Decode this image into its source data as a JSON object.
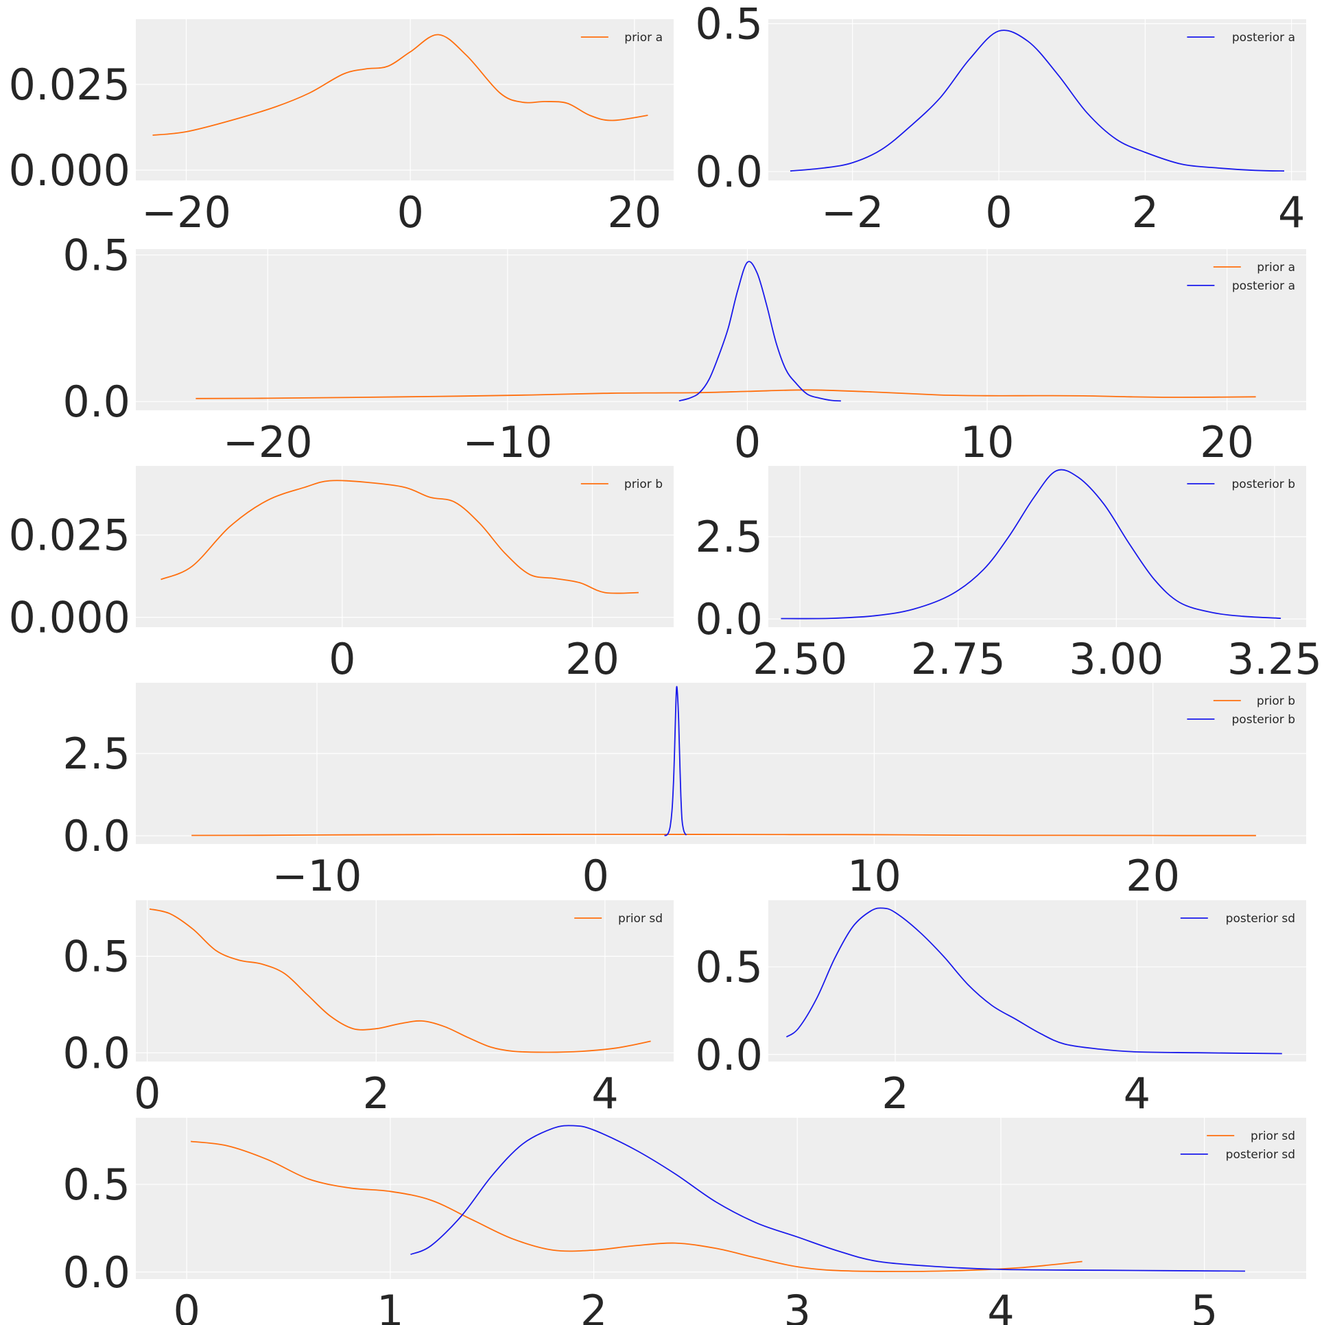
{
  "figure": {
    "colors": {
      "prior": "#ff6f0e",
      "posterior": "#1a1aeb",
      "background": "#eeeeee",
      "grid": "#ffffff"
    }
  },
  "chart_data": [
    {
      "id": "prior-a",
      "type": "line",
      "grid": true,
      "legend": "top-right",
      "xlim": [
        -24.5,
        23.5
      ],
      "ylim": [
        -0.003,
        0.044
      ],
      "xticks": [
        -20,
        0,
        20
      ],
      "xtick_labels": [
        "−20",
        "0",
        "20"
      ],
      "yticks": [
        0.0,
        0.025
      ],
      "ytick_labels": [
        "0.000",
        "0.025"
      ],
      "series": [
        {
          "name": "prior a",
          "color": "#ff6f0e",
          "x": [
            -23,
            -20,
            -16,
            -12,
            -9,
            -6,
            -4,
            -2,
            0,
            2.5,
            5,
            8,
            10,
            12,
            14,
            16,
            18,
            21.2
          ],
          "y": [
            0.0102,
            0.0112,
            0.0145,
            0.0185,
            0.0225,
            0.028,
            0.0295,
            0.0303,
            0.0345,
            0.0395,
            0.0335,
            0.0225,
            0.0198,
            0.02,
            0.0195,
            0.016,
            0.0145,
            0.016
          ]
        }
      ]
    },
    {
      "id": "posterior-a",
      "type": "line",
      "grid": true,
      "legend": "top-right",
      "xlim": [
        -3.15,
        4.2
      ],
      "ylim": [
        -0.03,
        0.515
      ],
      "xticks": [
        -2,
        0,
        2,
        4
      ],
      "xtick_labels": [
        "−2",
        "0",
        "2",
        "4"
      ],
      "yticks": [
        0.0,
        0.5
      ],
      "ytick_labels": [
        "0.0",
        "0.5"
      ],
      "series": [
        {
          "name": "posterior a",
          "color": "#1a1aeb",
          "x": [
            -2.85,
            -2.4,
            -2,
            -1.6,
            -1.2,
            -0.8,
            -0.4,
            0,
            0.4,
            0.8,
            1.2,
            1.6,
            2,
            2.5,
            3,
            3.5,
            3.9
          ],
          "y": [
            0.002,
            0.012,
            0.03,
            0.075,
            0.155,
            0.25,
            0.38,
            0.475,
            0.44,
            0.33,
            0.2,
            0.11,
            0.065,
            0.025,
            0.012,
            0.004,
            0.002
          ]
        }
      ]
    },
    {
      "id": "prior-posterior-a",
      "type": "line",
      "grid": true,
      "legend": "top-right",
      "xlim": [
        -25.5,
        23.3
      ],
      "ylim": [
        -0.03,
        0.52
      ],
      "xticks": [
        -20,
        -10,
        0,
        10,
        20
      ],
      "xtick_labels": [
        "−20",
        "−10",
        "0",
        "10",
        "20"
      ],
      "yticks": [
        0.0,
        0.5
      ],
      "ytick_labels": [
        "0.0",
        "0.5"
      ],
      "series": [
        {
          "name": "prior a",
          "color": "#ff6f0e",
          "x": [
            -23,
            -20,
            -16,
            -12,
            -9,
            -6,
            -4,
            -2,
            0,
            2.5,
            5,
            8,
            10,
            12,
            14,
            16,
            18,
            21.2
          ],
          "y": [
            0.0102,
            0.0112,
            0.0145,
            0.0185,
            0.0225,
            0.028,
            0.0295,
            0.0303,
            0.0345,
            0.0395,
            0.0335,
            0.0225,
            0.0198,
            0.02,
            0.0195,
            0.016,
            0.0145,
            0.016
          ]
        },
        {
          "name": "posterior a",
          "color": "#1a1aeb",
          "x": [
            -2.85,
            -2.4,
            -2,
            -1.6,
            -1.2,
            -0.8,
            -0.4,
            0,
            0.4,
            0.8,
            1.2,
            1.6,
            2,
            2.5,
            3,
            3.5,
            3.9
          ],
          "y": [
            0.002,
            0.012,
            0.03,
            0.075,
            0.155,
            0.25,
            0.38,
            0.475,
            0.44,
            0.33,
            0.2,
            0.11,
            0.065,
            0.025,
            0.012,
            0.004,
            0.002
          ]
        }
      ]
    },
    {
      "id": "prior-b",
      "type": "line",
      "grid": true,
      "legend": "top-right",
      "xlim": [
        -16.5,
        26.5
      ],
      "ylim": [
        -0.003,
        0.046
      ],
      "xticks": [
        0,
        20
      ],
      "xtick_labels": [
        "0",
        "20"
      ],
      "yticks": [
        0.0,
        0.025
      ],
      "ytick_labels": [
        "0.000",
        "0.025"
      ],
      "series": [
        {
          "name": "prior b",
          "color": "#ff6f0e",
          "x": [
            -14.5,
            -12,
            -9,
            -6,
            -3,
            -1,
            2,
            5,
            7,
            9,
            11,
            13,
            15,
            17,
            19,
            21,
            23.7
          ],
          "y": [
            0.0115,
            0.0155,
            0.0275,
            0.0355,
            0.0395,
            0.0415,
            0.041,
            0.0395,
            0.0365,
            0.035,
            0.0285,
            0.0195,
            0.013,
            0.0118,
            0.0105,
            0.0075,
            0.0075
          ]
        }
      ]
    },
    {
      "id": "posterior-b",
      "type": "line",
      "grid": true,
      "legend": "top-right",
      "xlim": [
        2.45,
        3.3
      ],
      "ylim": [
        -0.25,
        4.65
      ],
      "xticks": [
        2.5,
        2.75,
        3.0,
        3.25
      ],
      "xtick_labels": [
        "2.50",
        "2.75",
        "3.00",
        "3.25"
      ],
      "yticks": [
        0.0,
        2.5
      ],
      "ytick_labels": [
        "0.0",
        "2.5"
      ],
      "series": [
        {
          "name": "posterior b",
          "color": "#1a1aeb",
          "x": [
            2.47,
            2.55,
            2.62,
            2.68,
            2.74,
            2.79,
            2.83,
            2.87,
            2.905,
            2.94,
            2.98,
            3.02,
            3.06,
            3.1,
            3.15,
            3.2,
            3.26
          ],
          "y": [
            0.01,
            0.02,
            0.1,
            0.3,
            0.75,
            1.5,
            2.5,
            3.7,
            4.5,
            4.3,
            3.5,
            2.3,
            1.2,
            0.5,
            0.2,
            0.08,
            0.02
          ]
        }
      ]
    },
    {
      "id": "prior-posterior-b",
      "type": "line",
      "grid": true,
      "legend": "top-right",
      "xlim": [
        -16.5,
        25.5
      ],
      "ylim": [
        -0.25,
        4.65
      ],
      "xticks": [
        -10,
        0,
        10,
        20
      ],
      "xtick_labels": [
        "−10",
        "0",
        "10",
        "20"
      ],
      "yticks": [
        0.0,
        2.5
      ],
      "ytick_labels": [
        "0.0",
        "2.5"
      ],
      "series": [
        {
          "name": "prior b",
          "color": "#ff6f0e",
          "x": [
            -14.5,
            -12,
            -9,
            -6,
            -3,
            -1,
            2,
            5,
            7,
            9,
            11,
            13,
            15,
            17,
            19,
            21,
            23.7
          ],
          "y": [
            0.0115,
            0.0155,
            0.0275,
            0.0355,
            0.0395,
            0.0415,
            0.041,
            0.0395,
            0.0365,
            0.035,
            0.0285,
            0.0195,
            0.013,
            0.0118,
            0.0105,
            0.0075,
            0.0075
          ]
        },
        {
          "name": "posterior b",
          "color": "#1a1aeb",
          "x": [
            2.47,
            2.55,
            2.62,
            2.68,
            2.74,
            2.79,
            2.83,
            2.87,
            2.905,
            2.94,
            2.98,
            3.02,
            3.06,
            3.1,
            3.15,
            3.2,
            3.26
          ],
          "y": [
            0.01,
            0.02,
            0.1,
            0.3,
            0.75,
            1.5,
            2.5,
            3.7,
            4.5,
            4.3,
            3.5,
            2.3,
            1.2,
            0.5,
            0.2,
            0.08,
            0.02
          ]
        }
      ]
    },
    {
      "id": "prior-sd",
      "type": "line",
      "grid": true,
      "legend": "top-right",
      "xlim": [
        -0.1,
        4.6
      ],
      "ylim": [
        -0.045,
        0.79
      ],
      "xticks": [
        0,
        2,
        4
      ],
      "xtick_labels": [
        "0",
        "2",
        "4"
      ],
      "yticks": [
        0.0,
        0.5
      ],
      "ytick_labels": [
        "0.0",
        "0.5"
      ],
      "series": [
        {
          "name": "prior sd",
          "color": "#ff6f0e",
          "x": [
            0.02,
            0.2,
            0.4,
            0.6,
            0.8,
            1.0,
            1.2,
            1.4,
            1.6,
            1.8,
            2.0,
            2.2,
            2.4,
            2.6,
            2.8,
            3.0,
            3.2,
            3.5,
            3.8,
            4.1,
            4.4
          ],
          "y": [
            0.745,
            0.72,
            0.64,
            0.53,
            0.48,
            0.46,
            0.41,
            0.3,
            0.19,
            0.125,
            0.125,
            0.15,
            0.165,
            0.135,
            0.08,
            0.03,
            0.008,
            0.003,
            0.008,
            0.025,
            0.06
          ]
        }
      ]
    },
    {
      "id": "posterior-sd",
      "type": "line",
      "grid": true,
      "legend": "top-right",
      "xlim": [
        0.95,
        5.4
      ],
      "ylim": [
        -0.04,
        0.88
      ],
      "xticks": [
        2,
        4
      ],
      "xtick_labels": [
        "2",
        "4"
      ],
      "yticks": [
        0.0,
        0.5
      ],
      "ytick_labels": [
        "0.0",
        "0.5"
      ],
      "series": [
        {
          "name": "posterior sd",
          "color": "#1a1aeb",
          "x": [
            1.1,
            1.2,
            1.35,
            1.5,
            1.65,
            1.8,
            1.9,
            2.0,
            2.2,
            2.4,
            2.6,
            2.8,
            3.0,
            3.2,
            3.4,
            3.7,
            4.0,
            4.5,
            5.2
          ],
          "y": [
            0.1,
            0.15,
            0.32,
            0.55,
            0.73,
            0.82,
            0.835,
            0.81,
            0.7,
            0.56,
            0.4,
            0.28,
            0.2,
            0.12,
            0.06,
            0.03,
            0.015,
            0.01,
            0.005
          ]
        }
      ]
    },
    {
      "id": "prior-posterior-sd",
      "type": "line",
      "grid": true,
      "legend": "top-right",
      "xlim": [
        -0.25,
        5.5
      ],
      "ylim": [
        -0.04,
        0.88
      ],
      "xticks": [
        0,
        1,
        2,
        3,
        4,
        5
      ],
      "xtick_labels": [
        "0",
        "1",
        "2",
        "3",
        "4",
        "5"
      ],
      "yticks": [
        0.0,
        0.5
      ],
      "ytick_labels": [
        "0.0",
        "0.5"
      ],
      "series": [
        {
          "name": "prior sd",
          "color": "#ff6f0e",
          "x": [
            0.02,
            0.2,
            0.4,
            0.6,
            0.8,
            1.0,
            1.2,
            1.4,
            1.6,
            1.8,
            2.0,
            2.2,
            2.4,
            2.6,
            2.8,
            3.0,
            3.2,
            3.5,
            3.8,
            4.1,
            4.4
          ],
          "y": [
            0.745,
            0.72,
            0.64,
            0.53,
            0.48,
            0.46,
            0.41,
            0.3,
            0.19,
            0.125,
            0.125,
            0.15,
            0.165,
            0.135,
            0.08,
            0.03,
            0.008,
            0.003,
            0.008,
            0.025,
            0.06
          ]
        },
        {
          "name": "posterior sd",
          "color": "#1a1aeb",
          "x": [
            1.1,
            1.2,
            1.35,
            1.5,
            1.65,
            1.8,
            1.9,
            2.0,
            2.2,
            2.4,
            2.6,
            2.8,
            3.0,
            3.2,
            3.4,
            3.7,
            4.0,
            4.5,
            5.2
          ],
          "y": [
            0.1,
            0.15,
            0.32,
            0.55,
            0.73,
            0.82,
            0.835,
            0.81,
            0.7,
            0.56,
            0.4,
            0.28,
            0.2,
            0.12,
            0.06,
            0.03,
            0.015,
            0.01,
            0.005
          ]
        }
      ]
    }
  ]
}
